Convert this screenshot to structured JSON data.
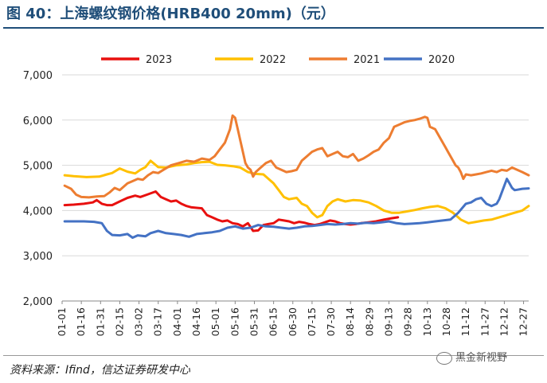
{
  "figure": {
    "title": "图 40：上海螺纹钢价格(HRB400 20mm)（元）",
    "source": "资料来源：Ifind，信达证券研发中心",
    "watermark": "黑金新视野"
  },
  "chart_data": {
    "type": "line",
    "title": "",
    "xlabel": "",
    "ylabel": "",
    "ylim": [
      2000,
      7000
    ],
    "yticks": [
      2000,
      3000,
      4000,
      5000,
      6000,
      7000
    ],
    "ytick_labels": [
      "2,000",
      "3,000",
      "4,000",
      "5,000",
      "6,000",
      "7,000"
    ],
    "xlim": [
      1,
      365
    ],
    "xticks": [
      1,
      16,
      31,
      46,
      61,
      76,
      91,
      106,
      121,
      136,
      151,
      166,
      181,
      196,
      211,
      226,
      241,
      256,
      271,
      286,
      301,
      316,
      331,
      346,
      361
    ],
    "xtick_labels": [
      "01-01",
      "01-16",
      "01-31",
      "02-15",
      "03-02",
      "03-17",
      "04-01",
      "04-16",
      "05-01",
      "05-16",
      "05-31",
      "06-15",
      "06-30",
      "07-15",
      "07-30",
      "08-14",
      "08-29",
      "09-13",
      "09-28",
      "10-13",
      "10-28",
      "11-12",
      "11-27",
      "12-12",
      "12-27"
    ],
    "grid": true,
    "legend_position": "top",
    "series": [
      {
        "name": "2023",
        "color": "#e8100f",
        "x": [
          3,
          10,
          18,
          25,
          28,
          32,
          36,
          40,
          46,
          52,
          58,
          62,
          68,
          74,
          78,
          82,
          86,
          90,
          94,
          98,
          102,
          106,
          110,
          114,
          118,
          122,
          126,
          130,
          134,
          138,
          142,
          146,
          150,
          154,
          158,
          162,
          166,
          170,
          174,
          178,
          182,
          186,
          190,
          194,
          198,
          202,
          206,
          210,
          214,
          218,
          222,
          226,
          230,
          234,
          240,
          246,
          252,
          258,
          263
        ],
        "values": [
          4120,
          4130,
          4150,
          4180,
          4230,
          4150,
          4120,
          4120,
          4200,
          4280,
          4330,
          4300,
          4360,
          4420,
          4300,
          4250,
          4200,
          4220,
          4150,
          4100,
          4070,
          4060,
          4050,
          3900,
          3850,
          3800,
          3760,
          3780,
          3720,
          3700,
          3650,
          3720,
          3550,
          3560,
          3680,
          3700,
          3720,
          3800,
          3780,
          3760,
          3720,
          3750,
          3730,
          3700,
          3680,
          3700,
          3740,
          3780,
          3760,
          3720,
          3700,
          3690,
          3700,
          3720,
          3740,
          3760,
          3800,
          3830,
          3850
        ]
      },
      {
        "name": "2022",
        "color": "#ffc000",
        "x": [
          3,
          10,
          20,
          30,
          36,
          40,
          46,
          52,
          58,
          62,
          66,
          70,
          76,
          82,
          90,
          98,
          104,
          110,
          116,
          122,
          128,
          134,
          140,
          146,
          152,
          158,
          162,
          166,
          170,
          174,
          178,
          184,
          188,
          192,
          196,
          200,
          204,
          208,
          212,
          216,
          222,
          228,
          234,
          240,
          246,
          252,
          258,
          264,
          270,
          276,
          282,
          288,
          294,
          300,
          306,
          312,
          318,
          324,
          330,
          336,
          342,
          348,
          354,
          360,
          365
        ],
        "values": [
          4780,
          4760,
          4740,
          4750,
          4800,
          4830,
          4930,
          4860,
          4820,
          4900,
          4960,
          5100,
          4960,
          4950,
          5000,
          5020,
          5050,
          5070,
          5080,
          5010,
          5000,
          4980,
          4950,
          4850,
          4810,
          4800,
          4700,
          4600,
          4450,
          4300,
          4250,
          4280,
          4150,
          4100,
          3950,
          3850,
          3900,
          4100,
          4200,
          4250,
          4200,
          4230,
          4220,
          4180,
          4100,
          4000,
          3950,
          3950,
          3980,
          4010,
          4050,
          4080,
          4100,
          4050,
          3950,
          3800,
          3720,
          3750,
          3780,
          3800,
          3850,
          3900,
          3950,
          4000,
          4100
        ]
      },
      {
        "name": "2021",
        "color": "#ed7d31",
        "x": [
          3,
          8,
          12,
          16,
          22,
          28,
          34,
          38,
          42,
          46,
          52,
          56,
          60,
          64,
          68,
          72,
          76,
          80,
          86,
          92,
          98,
          104,
          110,
          116,
          120,
          124,
          128,
          132,
          134,
          136,
          138,
          140,
          142,
          144,
          146,
          148,
          150,
          152,
          156,
          160,
          164,
          168,
          172,
          176,
          180,
          184,
          188,
          192,
          196,
          200,
          204,
          208,
          212,
          216,
          220,
          224,
          228,
          232,
          236,
          240,
          244,
          248,
          252,
          256,
          260,
          264,
          268,
          272,
          276,
          280,
          284,
          286,
          288,
          292,
          296,
          300,
          302,
          304,
          306,
          308,
          310,
          312,
          314,
          316,
          320,
          324,
          328,
          332,
          336,
          340,
          344,
          348,
          352,
          356,
          360,
          365
        ],
        "values": [
          4550,
          4480,
          4350,
          4300,
          4290,
          4310,
          4320,
          4400,
          4500,
          4450,
          4600,
          4650,
          4700,
          4680,
          4780,
          4850,
          4830,
          4900,
          5000,
          5050,
          5100,
          5080,
          5150,
          5120,
          5200,
          5350,
          5500,
          5800,
          6100,
          6050,
          5800,
          5550,
          5300,
          5050,
          4950,
          4900,
          4750,
          4850,
          4950,
          5050,
          5100,
          4950,
          4900,
          4850,
          4870,
          4900,
          5100,
          5200,
          5300,
          5350,
          5380,
          5200,
          5250,
          5300,
          5200,
          5180,
          5250,
          5100,
          5150,
          5220,
          5300,
          5350,
          5500,
          5600,
          5850,
          5900,
          5950,
          5980,
          6000,
          6030,
          6070,
          6050,
          5850,
          5800,
          5600,
          5400,
          5300,
          5200,
          5100,
          5000,
          4950,
          4850,
          4700,
          4800,
          4780,
          4800,
          4820,
          4850,
          4880,
          4850,
          4900,
          4880,
          4950,
          4900,
          4850,
          4780
        ]
      },
      {
        "name": "2020",
        "color": "#4472c4",
        "x": [
          3,
          10,
          18,
          26,
          32,
          36,
          40,
          46,
          52,
          56,
          60,
          66,
          70,
          76,
          82,
          88,
          94,
          100,
          106,
          112,
          118,
          124,
          130,
          136,
          142,
          148,
          154,
          160,
          166,
          172,
          178,
          184,
          190,
          196,
          202,
          208,
          214,
          220,
          226,
          232,
          238,
          244,
          250,
          256,
          262,
          268,
          274,
          280,
          286,
          292,
          298,
          304,
          310,
          316,
          320,
          324,
          328,
          332,
          336,
          340,
          342,
          344,
          346,
          348,
          350,
          352,
          354,
          356,
          360,
          365
        ],
        "values": [
          3760,
          3760,
          3760,
          3750,
          3720,
          3550,
          3460,
          3450,
          3480,
          3400,
          3450,
          3430,
          3500,
          3550,
          3500,
          3480,
          3460,
          3420,
          3480,
          3500,
          3520,
          3550,
          3620,
          3650,
          3600,
          3620,
          3680,
          3650,
          3640,
          3620,
          3600,
          3620,
          3650,
          3660,
          3680,
          3700,
          3690,
          3700,
          3720,
          3710,
          3730,
          3720,
          3740,
          3760,
          3720,
          3700,
          3710,
          3720,
          3740,
          3760,
          3780,
          3800,
          3950,
          4150,
          4180,
          4250,
          4280,
          4150,
          4100,
          4150,
          4250,
          4400,
          4550,
          4700,
          4600,
          4500,
          4450,
          4460,
          4480,
          4490
        ]
      }
    ]
  }
}
